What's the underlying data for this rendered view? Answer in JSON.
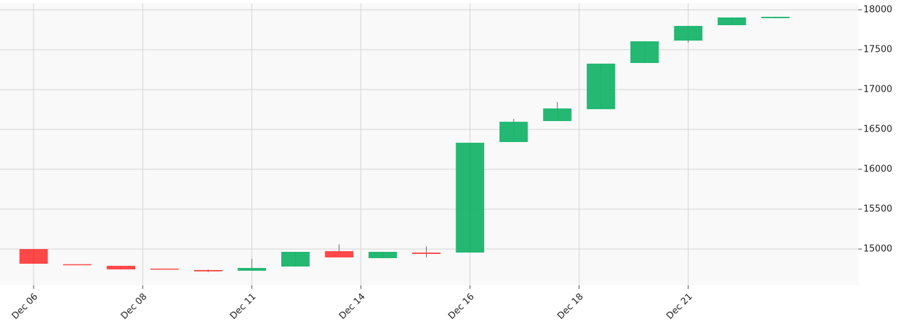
{
  "chart_data": {
    "type": "candlestick",
    "x": [
      0,
      1,
      2,
      3,
      4,
      5,
      6,
      7,
      8,
      9,
      10,
      11,
      12,
      13,
      14,
      15,
      16,
      17
    ],
    "series": [
      {
        "open": [
          15000,
          14810,
          14790,
          14755,
          14737,
          14728,
          14781,
          14974,
          14886,
          14956,
          14956,
          16342,
          16605,
          16754,
          17333,
          17614,
          17807,
          17895
        ],
        "high": [
          15000,
          14810,
          14790,
          14755,
          14745,
          14877,
          14965,
          15060,
          14965,
          15035,
          16333,
          16632,
          16842,
          17325,
          17605,
          17798,
          17904,
          17912
        ],
        "low": [
          14816,
          14800,
          14745,
          14748,
          14710,
          14728,
          14781,
          14895,
          14886,
          14895,
          14956,
          16342,
          16605,
          16754,
          17333,
          17588,
          17807,
          17895
        ],
        "close": [
          14816,
          14800,
          14745,
          14748,
          14720,
          14763,
          14965,
          14895,
          14965,
          14939,
          16333,
          16596,
          16763,
          17325,
          17605,
          17798,
          17904,
          17912
        ]
      }
    ],
    "up_color": "#18b46c",
    "down_color": "#ff3e3e",
    "wick_color": "#666666",
    "xlim": [
      -0.77,
      18.9
    ],
    "xticks": [
      {
        "value": 0,
        "label": "Dec 06"
      },
      {
        "value": 2.5,
        "label": "Dec 08"
      },
      {
        "value": 5,
        "label": "Dec 11"
      },
      {
        "value": 7.5,
        "label": "Dec 14"
      },
      {
        "value": 10,
        "label": "Dec 16"
      },
      {
        "value": 12.5,
        "label": "Dec 18"
      },
      {
        "value": 15,
        "label": "Dec 21"
      }
    ],
    "ylim": [
      14544,
      18079
    ],
    "yticks": [
      15000,
      15500,
      16000,
      16500,
      17000,
      17500,
      18000
    ],
    "grid": true
  }
}
